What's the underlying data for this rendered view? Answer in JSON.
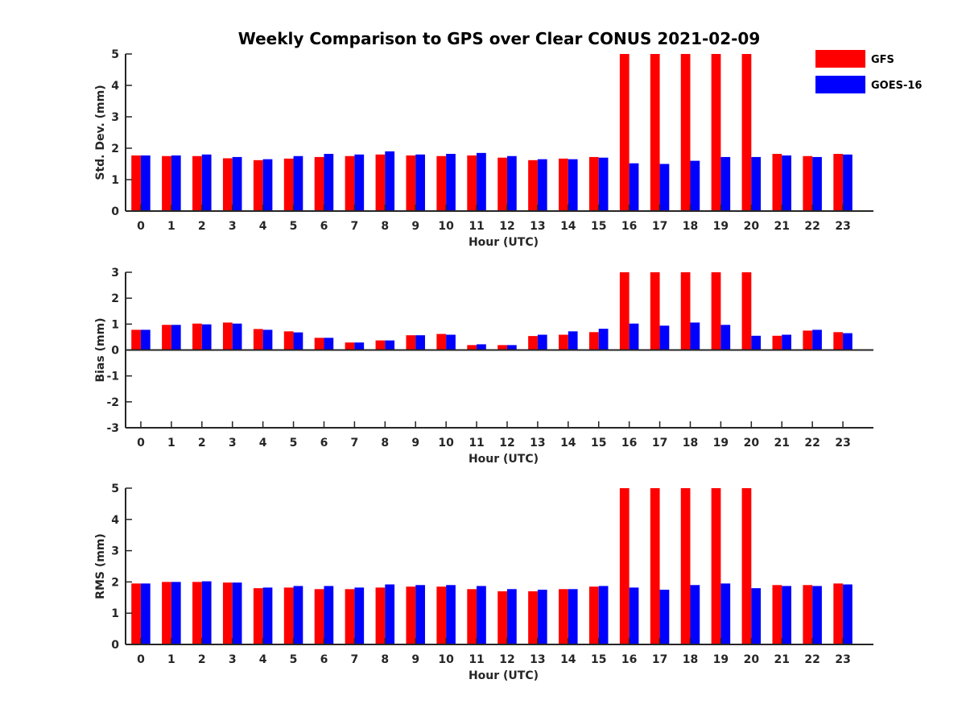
{
  "title": "Weekly Comparison to GPS over Clear CONUS 2021-02-09",
  "colors": {
    "GFS": "#ff0000",
    "GOES-16": "#0000ff",
    "axis": "#262626"
  },
  "legend": {
    "placement": "top-right",
    "entries": [
      "GFS",
      "GOES-16"
    ]
  },
  "chart_data": [
    {
      "type": "bar",
      "xlabel": "Hour (UTC)",
      "ylabel": "Std. Dev. (mm)",
      "ylim": [
        0,
        5
      ],
      "yticks": [
        0,
        1,
        2,
        3,
        4,
        5
      ],
      "categories": [
        "0",
        "1",
        "2",
        "3",
        "4",
        "5",
        "6",
        "7",
        "8",
        "9",
        "10",
        "11",
        "12",
        "13",
        "14",
        "15",
        "16",
        "17",
        "18",
        "19",
        "20",
        "21",
        "22",
        "23"
      ],
      "grid": false,
      "series": [
        {
          "name": "GFS",
          "values": [
            1.77,
            1.75,
            1.75,
            1.68,
            1.62,
            1.67,
            1.72,
            1.75,
            1.8,
            1.77,
            1.75,
            1.77,
            1.7,
            1.62,
            1.67,
            1.72,
            5,
            5,
            5,
            5,
            5,
            1.82,
            1.75,
            1.82
          ]
        },
        {
          "name": "GOES-16",
          "values": [
            1.77,
            1.77,
            1.8,
            1.72,
            1.65,
            1.75,
            1.82,
            1.8,
            1.9,
            1.8,
            1.82,
            1.85,
            1.75,
            1.65,
            1.65,
            1.7,
            1.52,
            1.5,
            1.6,
            1.72,
            1.72,
            1.77,
            1.72,
            1.8
          ]
        }
      ]
    },
    {
      "type": "bar",
      "xlabel": "Hour (UTC)",
      "ylabel": "Bias (mm)",
      "ylim": [
        -3,
        3
      ],
      "yticks": [
        -3,
        -2,
        -1,
        0,
        1,
        2,
        3
      ],
      "categories": [
        "0",
        "1",
        "2",
        "3",
        "4",
        "5",
        "6",
        "7",
        "8",
        "9",
        "10",
        "11",
        "12",
        "13",
        "14",
        "15",
        "16",
        "17",
        "18",
        "19",
        "20",
        "21",
        "22",
        "23"
      ],
      "grid": false,
      "series": [
        {
          "name": "GFS",
          "values": [
            0.78,
            0.97,
            1.02,
            1.06,
            0.81,
            0.72,
            0.47,
            0.29,
            0.37,
            0.57,
            0.62,
            0.19,
            0.19,
            0.54,
            0.59,
            0.69,
            3,
            3,
            3,
            3,
            3,
            0.55,
            0.75,
            0.69
          ]
        },
        {
          "name": "GOES-16",
          "values": [
            0.78,
            0.97,
            0.99,
            1.02,
            0.78,
            0.68,
            0.47,
            0.29,
            0.37,
            0.57,
            0.59,
            0.22,
            0.19,
            0.59,
            0.72,
            0.82,
            1.02,
            0.94,
            1.06,
            0.97,
            0.55,
            0.59,
            0.78,
            0.65
          ]
        }
      ]
    },
    {
      "type": "bar",
      "xlabel": "Hour (UTC)",
      "ylabel": "RMS (mm)",
      "ylim": [
        0,
        5
      ],
      "yticks": [
        0,
        1,
        2,
        3,
        4,
        5
      ],
      "categories": [
        "0",
        "1",
        "2",
        "3",
        "4",
        "5",
        "6",
        "7",
        "8",
        "9",
        "10",
        "11",
        "12",
        "13",
        "14",
        "15",
        "16",
        "17",
        "18",
        "19",
        "20",
        "21",
        "22",
        "23"
      ],
      "grid": false,
      "series": [
        {
          "name": "GFS",
          "values": [
            1.95,
            2.0,
            2.0,
            1.98,
            1.8,
            1.82,
            1.77,
            1.77,
            1.82,
            1.85,
            1.85,
            1.77,
            1.7,
            1.7,
            1.77,
            1.85,
            5,
            5,
            5,
            5,
            5,
            1.9,
            1.9,
            1.95
          ]
        },
        {
          "name": "GOES-16",
          "values": [
            1.95,
            2.0,
            2.02,
            1.98,
            1.82,
            1.87,
            1.87,
            1.82,
            1.92,
            1.9,
            1.9,
            1.87,
            1.77,
            1.75,
            1.77,
            1.87,
            1.82,
            1.75,
            1.9,
            1.95,
            1.8,
            1.87,
            1.87,
            1.92
          ]
        }
      ]
    }
  ]
}
